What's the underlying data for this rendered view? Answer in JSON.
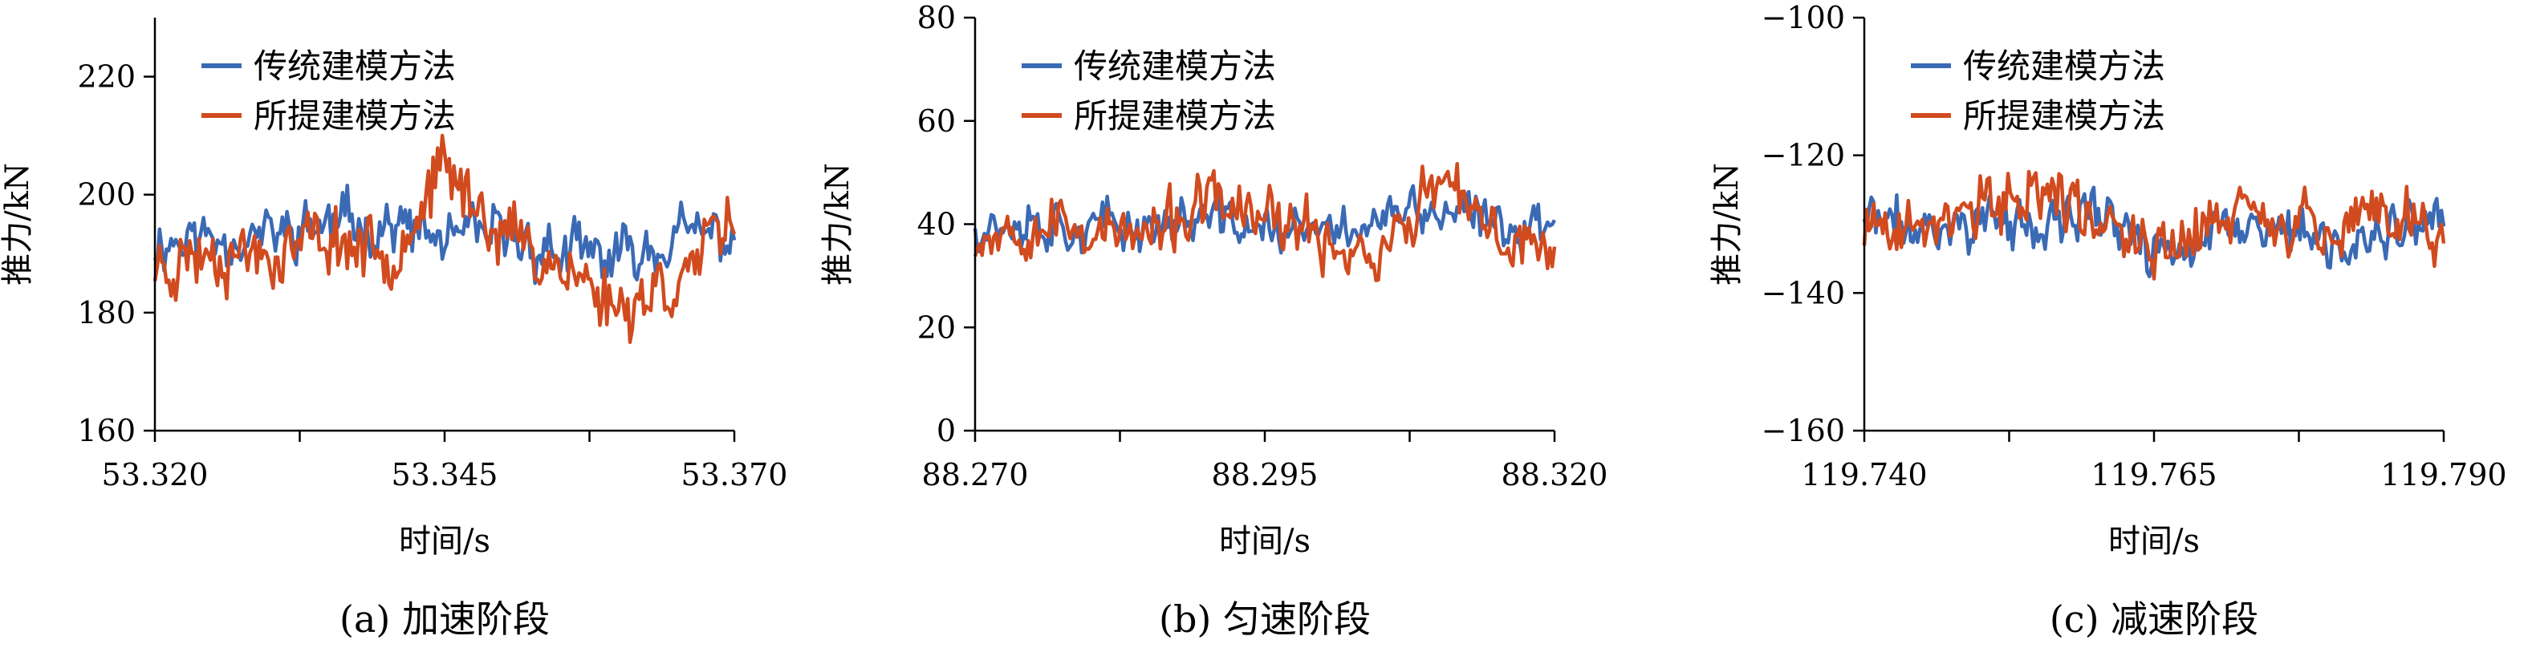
{
  "legend": [
    "传统建模方法",
    "所提建模方法"
  ],
  "colors": {
    "traditional": "#3b6ab5",
    "proposed": "#d14b1f"
  },
  "chart_data": [
    {
      "type": "line",
      "caption": "(a) 加速阶段",
      "xlabel": "时间/s",
      "ylabel": "推力/kN",
      "x_ticks": [
        "53.320",
        "53.345",
        "53.370"
      ],
      "xlim": [
        53.32,
        53.37
      ],
      "y_ticks": [
        "160",
        "180",
        "200",
        "220"
      ],
      "ylim": [
        160,
        230
      ],
      "legend_position": "top-left",
      "sampling_interval_s": 0.0002,
      "series": [
        {
          "name": "传统建模方法",
          "base": [
            192,
            193,
            193,
            195,
            195,
            192,
            193,
            190,
            189,
            193,
            193
          ],
          "amp": 5.0,
          "seed": 11
        },
        {
          "name": "所提建模方法",
          "base": [
            188,
            191,
            190,
            193,
            190,
            204,
            194,
            188,
            181,
            186,
            194
          ],
          "amp": 6.0,
          "seed": 23
        }
      ]
    },
    {
      "type": "line",
      "caption": "(b) 匀速阶段",
      "xlabel": "时间/s",
      "ylabel": "推力/kN",
      "x_ticks": [
        "88.270",
        "88.295",
        "88.320"
      ],
      "xlim": [
        88.27,
        88.32
      ],
      "y_ticks": [
        "0",
        "20",
        "40",
        "60",
        "80"
      ],
      "ylim": [
        0,
        80
      ],
      "legend_position": "top-left",
      "sampling_interval_s": 0.0002,
      "series": [
        {
          "name": "传统建模方法",
          "base": [
            40,
            41,
            39,
            40,
            41,
            39,
            38,
            41,
            42,
            40,
            40
          ],
          "amp": 5.0,
          "seed": 37
        },
        {
          "name": "所提建模方法",
          "base": [
            38,
            41,
            39,
            37,
            44,
            41,
            37,
            34,
            48,
            37,
            36
          ],
          "amp": 6.0,
          "seed": 53
        }
      ]
    },
    {
      "type": "line",
      "caption": "(c) 减速阶段",
      "xlabel": "时间/s",
      "ylabel": "推力/kN",
      "x_ticks": [
        "119.740",
        "119.765",
        "119.790"
      ],
      "xlim": [
        119.74,
        119.79
      ],
      "y_ticks": [
        "−100",
        "−120",
        "−140",
        "−160"
      ],
      "ylim": [
        -160,
        -100
      ],
      "legend_position": "top-left",
      "sampling_interval_s": 0.0002,
      "series": [
        {
          "name": "传统建模方法",
          "base": [
            -129,
            -131,
            -129,
            -131,
            -128,
            -134,
            -132,
            -130,
            -134,
            -131,
            -131
          ],
          "amp": 4.0,
          "seed": 71
        },
        {
          "name": "所提建模方法",
          "base": [
            -131,
            -130,
            -128,
            -124,
            -129,
            -135,
            -129,
            -128,
            -132,
            -127,
            -133
          ],
          "amp": 5.0,
          "seed": 89
        }
      ]
    }
  ]
}
